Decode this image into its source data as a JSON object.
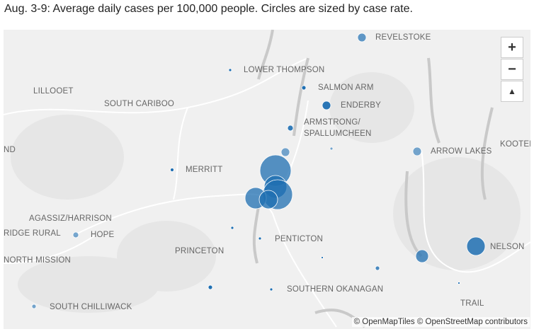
{
  "caption": "Aug. 3-9: Average daily cases per 100,000 people. Circles are sized by case rate.",
  "places": [
    "REVELSTOKE",
    "LOWER THOMPSON",
    "LILLOOET",
    "SALMON ARM",
    "SOUTH CARIBOO",
    "ENDERBY",
    "ARMSTRONG/",
    "SPALLUMCHEEN",
    "ARROW LAKES",
    "KOOTEN",
    "ND",
    "MERRITT",
    "AGASSIZ/HARRISON",
    "RIDGE RURAL",
    "HOPE",
    "PENTICTON",
    "PRINCETON",
    "NORTH MISSION",
    "NELSON",
    "SOUTHERN OKANAGAN",
    "SOUTH CHILLIWACK",
    "TRAIL"
  ],
  "controls": {
    "zoom_in": "+",
    "zoom_out": "−",
    "reset": "▲"
  },
  "attribution": "© OpenMapTiles © OpenStreetMap contributors"
}
